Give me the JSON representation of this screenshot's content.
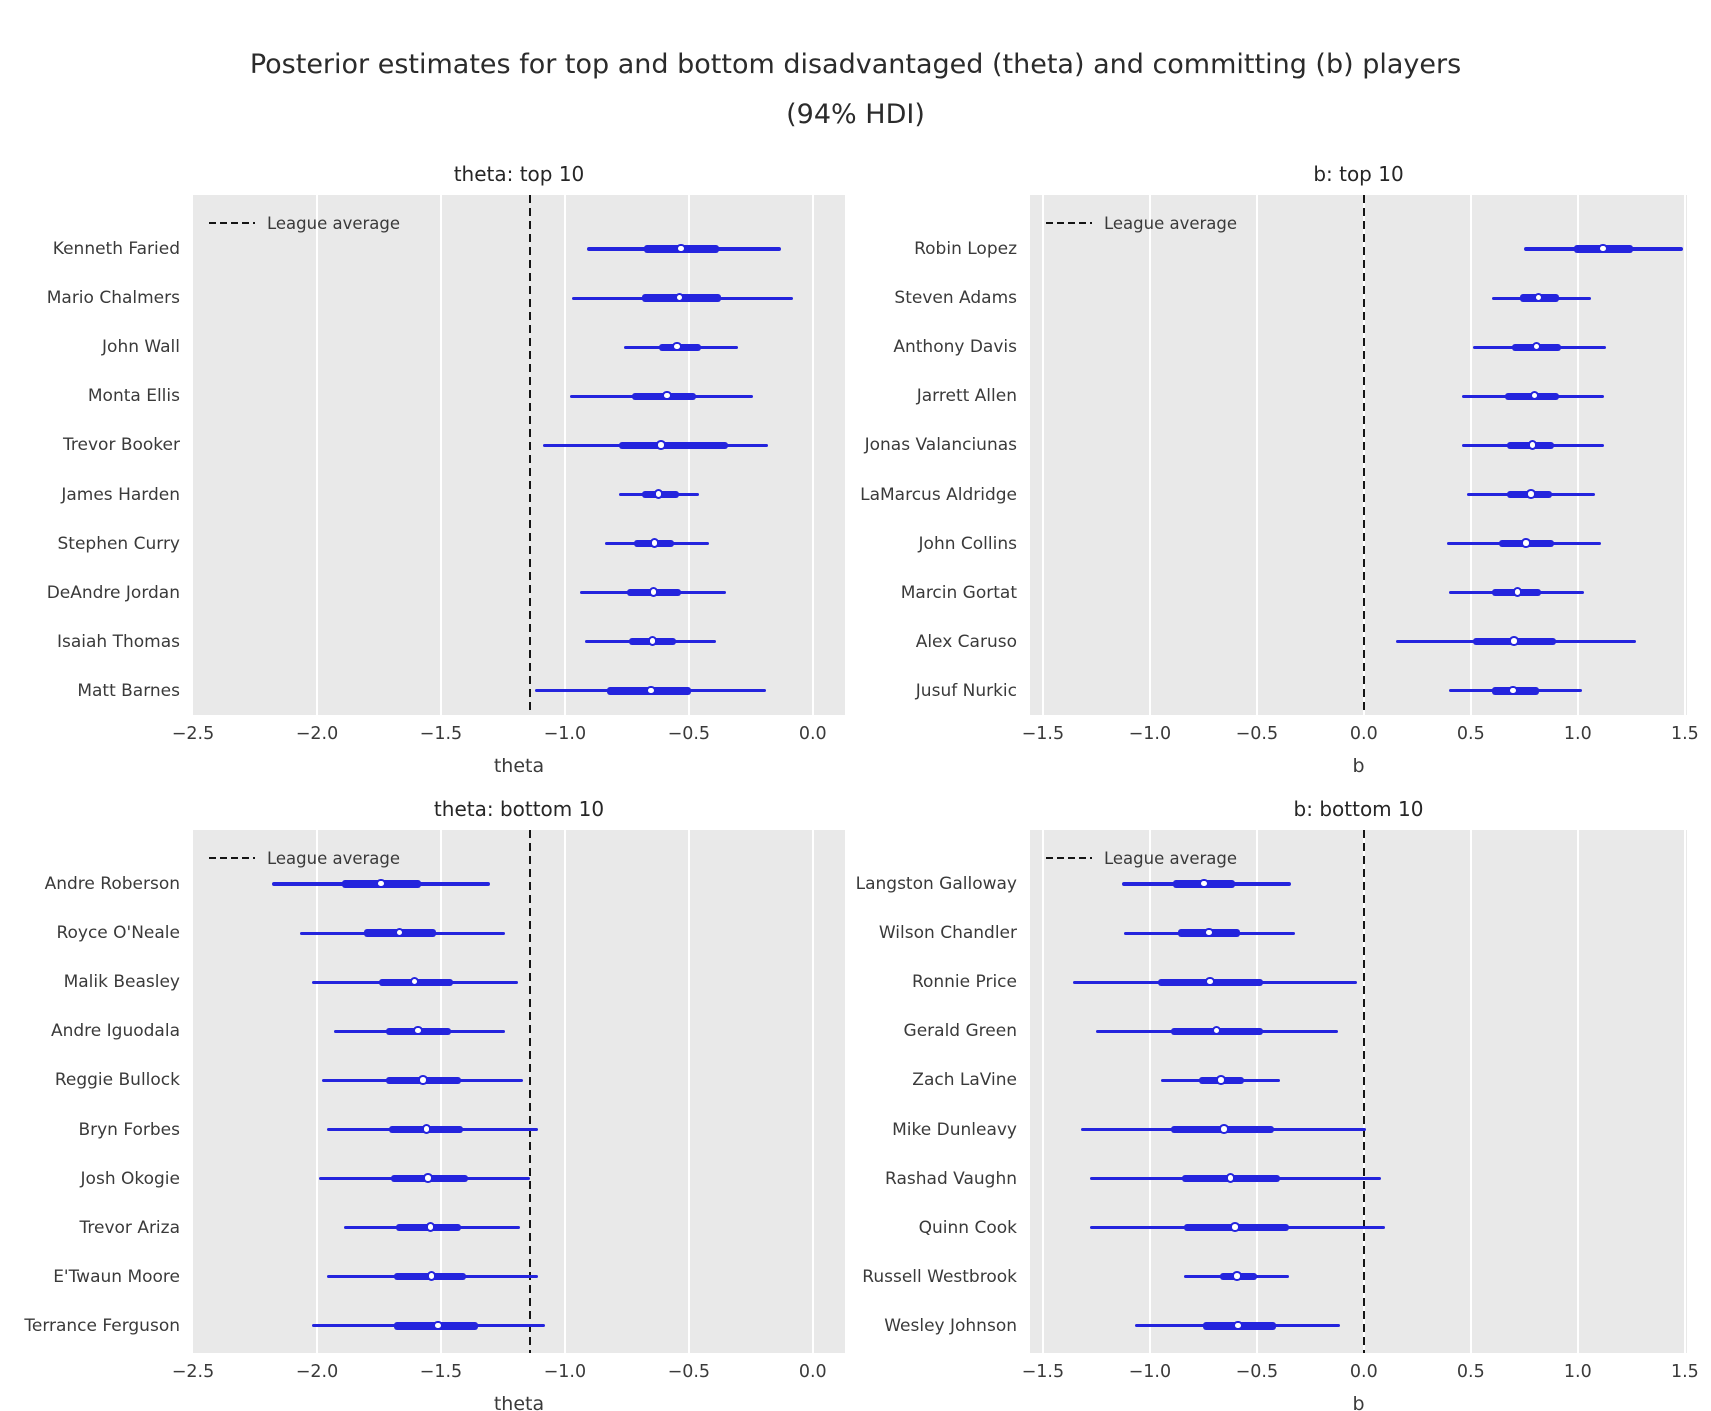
{
  "title": {
    "line1": "Posterior estimates for top and bottom disadvantaged (theta) and committing (b) players",
    "line2": "(94% HDI)"
  },
  "legend_label": "League average",
  "colors": {
    "interval_blue": "#2424dd",
    "axes_background": "#e9e9e9",
    "gridline": "#ffffff",
    "league_dash": "#141414",
    "text": "#3a3a3a"
  },
  "chart_data": [
    {
      "type": "scatter",
      "subtype": "forest-plot-94pct-HDI",
      "title": "theta: top 10",
      "xlabel": "theta",
      "xlim": [
        -2.5,
        0.13
      ],
      "grid": true,
      "legend_position": "upper left",
      "legend_label": "League average",
      "league_average": -1.14,
      "tick_values": [
        -2.5,
        -2.0,
        -1.5,
        -1.0,
        -0.5,
        0.0
      ],
      "tick_labels": [
        "−2.5",
        "−2.0",
        "−1.5",
        "−1.0",
        "−0.5",
        "0.0"
      ],
      "players": [
        {
          "name": "Kenneth Faried",
          "hdi_lo": -0.91,
          "iq_lo": -0.68,
          "mean": -0.53,
          "iq_hi": -0.38,
          "hdi_hi": -0.13
        },
        {
          "name": "Mario Chalmers",
          "hdi_lo": -0.97,
          "iq_lo": -0.69,
          "mean": -0.535,
          "iq_hi": -0.37,
          "hdi_hi": -0.08
        },
        {
          "name": "John Wall",
          "hdi_lo": -0.76,
          "iq_lo": -0.62,
          "mean": -0.545,
          "iq_hi": -0.45,
          "hdi_hi": -0.3
        },
        {
          "name": "Monta Ellis",
          "hdi_lo": -0.98,
          "iq_lo": -0.73,
          "mean": -0.585,
          "iq_hi": -0.47,
          "hdi_hi": -0.24
        },
        {
          "name": "Trevor Booker",
          "hdi_lo": -1.09,
          "iq_lo": -0.78,
          "mean": -0.61,
          "iq_hi": -0.34,
          "hdi_hi": -0.18
        },
        {
          "name": "James Harden",
          "hdi_lo": -0.78,
          "iq_lo": -0.69,
          "mean": -0.62,
          "iq_hi": -0.54,
          "hdi_hi": -0.46
        },
        {
          "name": "Stephen Curry",
          "hdi_lo": -0.84,
          "iq_lo": -0.72,
          "mean": -0.635,
          "iq_hi": -0.56,
          "hdi_hi": -0.42
        },
        {
          "name": "DeAndre Jordan",
          "hdi_lo": -0.94,
          "iq_lo": -0.75,
          "mean": -0.64,
          "iq_hi": -0.53,
          "hdi_hi": -0.35
        },
        {
          "name": "Isaiah Thomas",
          "hdi_lo": -0.92,
          "iq_lo": -0.74,
          "mean": -0.645,
          "iq_hi": -0.55,
          "hdi_hi": -0.39
        },
        {
          "name": "Matt Barnes",
          "hdi_lo": -1.12,
          "iq_lo": -0.83,
          "mean": -0.65,
          "iq_hi": -0.49,
          "hdi_hi": -0.19
        }
      ]
    },
    {
      "type": "scatter",
      "subtype": "forest-plot-94pct-HDI",
      "title": "b: top 10",
      "xlabel": "b",
      "xlim": [
        -1.56,
        1.51
      ],
      "grid": true,
      "legend_position": "upper left",
      "legend_label": "League average",
      "league_average": 0.0,
      "tick_values": [
        -1.5,
        -1.0,
        -0.5,
        0.0,
        0.5,
        1.0,
        1.5
      ],
      "tick_labels": [
        "−1.5",
        "−1.0",
        "−0.5",
        "0.0",
        "0.5",
        "1.0",
        "1.5"
      ],
      "players": [
        {
          "name": "Robin Lopez",
          "hdi_lo": 0.75,
          "iq_lo": 0.98,
          "mean": 1.12,
          "iq_hi": 1.26,
          "hdi_hi": 1.49
        },
        {
          "name": "Steven Adams",
          "hdi_lo": 0.6,
          "iq_lo": 0.73,
          "mean": 0.82,
          "iq_hi": 0.91,
          "hdi_hi": 1.06
        },
        {
          "name": "Anthony Davis",
          "hdi_lo": 0.51,
          "iq_lo": 0.69,
          "mean": 0.81,
          "iq_hi": 0.92,
          "hdi_hi": 1.13
        },
        {
          "name": "Jarrett Allen",
          "hdi_lo": 0.46,
          "iq_lo": 0.66,
          "mean": 0.8,
          "iq_hi": 0.91,
          "hdi_hi": 1.12
        },
        {
          "name": "Jonas Valanciunas",
          "hdi_lo": 0.46,
          "iq_lo": 0.67,
          "mean": 0.79,
          "iq_hi": 0.89,
          "hdi_hi": 1.12
        },
        {
          "name": "LaMarcus Aldridge",
          "hdi_lo": 0.48,
          "iq_lo": 0.67,
          "mean": 0.785,
          "iq_hi": 0.88,
          "hdi_hi": 1.08
        },
        {
          "name": "John Collins",
          "hdi_lo": 0.39,
          "iq_lo": 0.63,
          "mean": 0.76,
          "iq_hi": 0.89,
          "hdi_hi": 1.11
        },
        {
          "name": "Marcin Gortat",
          "hdi_lo": 0.4,
          "iq_lo": 0.6,
          "mean": 0.72,
          "iq_hi": 0.83,
          "hdi_hi": 1.03
        },
        {
          "name": "Alex Caruso",
          "hdi_lo": 0.15,
          "iq_lo": 0.51,
          "mean": 0.705,
          "iq_hi": 0.9,
          "hdi_hi": 1.27
        },
        {
          "name": "Jusuf Nurkic",
          "hdi_lo": 0.4,
          "iq_lo": 0.6,
          "mean": 0.7,
          "iq_hi": 0.82,
          "hdi_hi": 1.02
        }
      ]
    },
    {
      "type": "scatter",
      "subtype": "forest-plot-94pct-HDI",
      "title": "theta: bottom 10",
      "xlabel": "theta",
      "xlim": [
        -2.5,
        0.13
      ],
      "grid": true,
      "legend_position": "upper left",
      "legend_label": "League average",
      "league_average": -1.14,
      "tick_values": [
        -2.5,
        -2.0,
        -1.5,
        -1.0,
        -0.5,
        0.0
      ],
      "tick_labels": [
        "−2.5",
        "−2.0",
        "−1.5",
        "−1.0",
        "−0.5",
        "0.0"
      ],
      "players": [
        {
          "name": "Andre Roberson",
          "hdi_lo": -2.18,
          "iq_lo": -1.9,
          "mean": -1.74,
          "iq_hi": -1.58,
          "hdi_hi": -1.3
        },
        {
          "name": "Royce O'Neale",
          "hdi_lo": -2.07,
          "iq_lo": -1.81,
          "mean": -1.665,
          "iq_hi": -1.52,
          "hdi_hi": -1.24
        },
        {
          "name": "Malik Beasley",
          "hdi_lo": -2.02,
          "iq_lo": -1.75,
          "mean": -1.605,
          "iq_hi": -1.45,
          "hdi_hi": -1.19
        },
        {
          "name": "Andre Iguodala",
          "hdi_lo": -1.93,
          "iq_lo": -1.72,
          "mean": -1.59,
          "iq_hi": -1.46,
          "hdi_hi": -1.24
        },
        {
          "name": "Reggie Bullock",
          "hdi_lo": -1.98,
          "iq_lo": -1.72,
          "mean": -1.57,
          "iq_hi": -1.42,
          "hdi_hi": -1.17
        },
        {
          "name": "Bryn Forbes",
          "hdi_lo": -1.96,
          "iq_lo": -1.71,
          "mean": -1.555,
          "iq_hi": -1.41,
          "hdi_hi": -1.11
        },
        {
          "name": "Josh Okogie",
          "hdi_lo": -1.99,
          "iq_lo": -1.7,
          "mean": -1.55,
          "iq_hi": -1.39,
          "hdi_hi": -1.14
        },
        {
          "name": "Trevor Ariza",
          "hdi_lo": -1.89,
          "iq_lo": -1.68,
          "mean": -1.54,
          "iq_hi": -1.42,
          "hdi_hi": -1.18
        },
        {
          "name": "E'Twaun Moore",
          "hdi_lo": -1.96,
          "iq_lo": -1.69,
          "mean": -1.535,
          "iq_hi": -1.4,
          "hdi_hi": -1.11
        },
        {
          "name": "Terrance Ferguson",
          "hdi_lo": -2.02,
          "iq_lo": -1.69,
          "mean": -1.51,
          "iq_hi": -1.35,
          "hdi_hi": -1.08
        }
      ]
    },
    {
      "type": "scatter",
      "subtype": "forest-plot-94pct-HDI",
      "title": "b: bottom 10",
      "xlabel": "b",
      "xlim": [
        -1.56,
        1.51
      ],
      "grid": true,
      "legend_position": "upper left",
      "legend_label": "League average",
      "league_average": 0.0,
      "tick_values": [
        -1.5,
        -1.0,
        -0.5,
        0.0,
        0.5,
        1.0,
        1.5
      ],
      "tick_labels": [
        "−1.5",
        "−1.0",
        "−0.5",
        "0.0",
        "0.5",
        "1.0",
        "1.5"
      ],
      "players": [
        {
          "name": "Langston Galloway",
          "hdi_lo": -1.13,
          "iq_lo": -0.89,
          "mean": -0.745,
          "iq_hi": -0.6,
          "hdi_hi": -0.34
        },
        {
          "name": "Wilson Chandler",
          "hdi_lo": -1.12,
          "iq_lo": -0.87,
          "mean": -0.72,
          "iq_hi": -0.58,
          "hdi_hi": -0.32
        },
        {
          "name": "Ronnie Price",
          "hdi_lo": -1.36,
          "iq_lo": -0.96,
          "mean": -0.715,
          "iq_hi": -0.47,
          "hdi_hi": -0.03
        },
        {
          "name": "Gerald Green",
          "hdi_lo": -1.25,
          "iq_lo": -0.9,
          "mean": -0.685,
          "iq_hi": -0.47,
          "hdi_hi": -0.12
        },
        {
          "name": "Zach LaVine",
          "hdi_lo": -0.95,
          "iq_lo": -0.77,
          "mean": -0.665,
          "iq_hi": -0.56,
          "hdi_hi": -0.39
        },
        {
          "name": "Mike Dunleavy",
          "hdi_lo": -1.32,
          "iq_lo": -0.9,
          "mean": -0.65,
          "iq_hi": -0.42,
          "hdi_hi": 0.01
        },
        {
          "name": "Rashad Vaughn",
          "hdi_lo": -1.28,
          "iq_lo": -0.85,
          "mean": -0.62,
          "iq_hi": -0.39,
          "hdi_hi": 0.08
        },
        {
          "name": "Quinn Cook",
          "hdi_lo": -1.28,
          "iq_lo": -0.84,
          "mean": -0.6,
          "iq_hi": -0.35,
          "hdi_hi": 0.1
        },
        {
          "name": "Russell Westbrook",
          "hdi_lo": -0.84,
          "iq_lo": -0.67,
          "mean": -0.59,
          "iq_hi": -0.5,
          "hdi_hi": -0.35
        },
        {
          "name": "Wesley Johnson",
          "hdi_lo": -1.07,
          "iq_lo": -0.75,
          "mean": -0.585,
          "iq_hi": -0.41,
          "hdi_hi": -0.11
        }
      ]
    }
  ]
}
